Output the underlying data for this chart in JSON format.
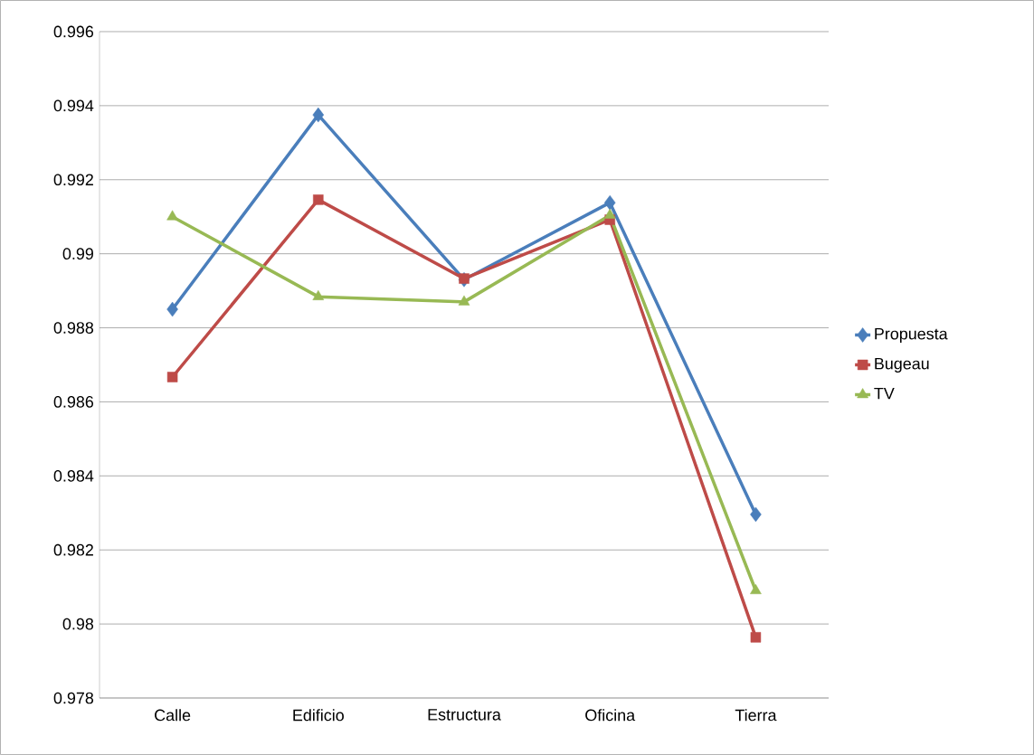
{
  "chart_data": {
    "type": "line",
    "categories": [
      "Calle",
      "Edificio",
      "Estructura",
      "Oficina",
      "Tierra"
    ],
    "series": [
      {
        "name": "Propuesta",
        "color": "#4a7ebb",
        "marker": "diamond",
        "values": [
          0.9885,
          0.99375,
          0.9893,
          0.99138,
          0.98296
        ]
      },
      {
        "name": "Bugeau",
        "color": "#be4b48",
        "marker": "square",
        "values": [
          0.98667,
          0.99146,
          0.98933,
          0.99092,
          0.97964
        ]
      },
      {
        "name": "TV",
        "color": "#98b954",
        "marker": "triangle",
        "values": [
          0.991,
          0.98884,
          0.9887,
          0.99104,
          0.9809
        ]
      }
    ],
    "ylim": [
      0.978,
      0.996
    ],
    "yticks": [
      0.978,
      0.98,
      0.982,
      0.984,
      0.986,
      0.988,
      0.99,
      0.992,
      0.994,
      0.996
    ],
    "grid": "y",
    "legend": "right",
    "line_style": "solid"
  }
}
